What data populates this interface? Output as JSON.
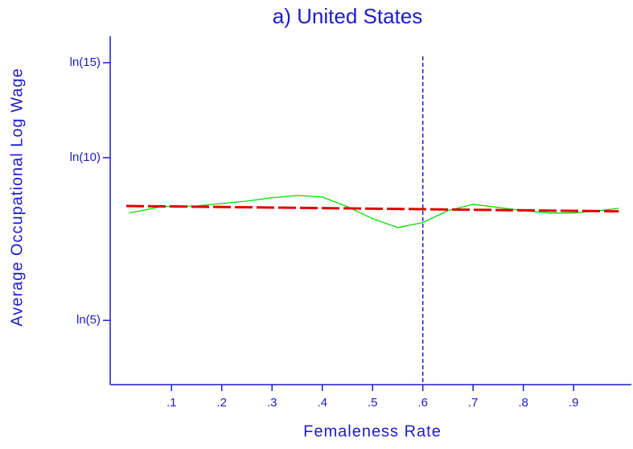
{
  "chart_data": {
    "type": "line",
    "title": "a) United States",
    "xlabel": "Femaleness Rate",
    "ylabel": "Average Occupational Log Wage",
    "xlim": [
      -0.022,
      1.015
    ],
    "ylim": [
      1.335,
      2.821
    ],
    "xticks": [
      {
        "value": 0.1,
        "label": ".1"
      },
      {
        "value": 0.2,
        "label": ".2"
      },
      {
        "value": 0.3,
        "label": ".3"
      },
      {
        "value": 0.4,
        "label": ".4"
      },
      {
        "value": 0.5,
        "label": ".5"
      },
      {
        "value": 0.6,
        "label": ".6"
      },
      {
        "value": 0.7,
        "label": ".7"
      },
      {
        "value": 0.8,
        "label": ".8"
      },
      {
        "value": 0.9,
        "label": ".9"
      }
    ],
    "yticks": [
      {
        "value": 1.609,
        "label": "ln(5)"
      },
      {
        "value": 2.303,
        "label": "ln(10)"
      },
      {
        "value": 2.708,
        "label": "ln(15)"
      }
    ],
    "vline": 0.6,
    "vline_color": "#1c1ccc",
    "series": [
      {
        "color": "#00dd00",
        "dash": false,
        "x": [
          0.015,
          0.08,
          0.15,
          0.25,
          0.3,
          0.35,
          0.4,
          0.45,
          0.5,
          0.55,
          0.6,
          0.65,
          0.7,
          0.75,
          0.8,
          0.85,
          0.9,
          0.95,
          0.99
        ],
        "values": [
          2.067,
          2.094,
          2.097,
          2.118,
          2.132,
          2.142,
          2.135,
          2.094,
          2.043,
          2.005,
          2.026,
          2.077,
          2.104,
          2.091,
          2.077,
          2.067,
          2.067,
          2.077,
          2.087
        ]
      },
      {
        "color": "#e00000",
        "dash": true,
        "x": [
          0.01,
          0.99
        ],
        "values": [
          2.097,
          2.074
        ]
      }
    ]
  }
}
